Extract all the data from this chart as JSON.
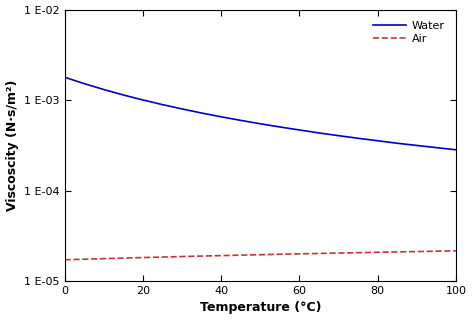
{
  "title": "",
  "xlabel": "Temperature (°C)",
  "ylabel": "Viscoscity (N·s/m²)",
  "xlim": [
    0,
    100
  ],
  "ylim": [
    1e-05,
    0.01
  ],
  "water_color": "#0000cc",
  "air_color": "#cc3333",
  "legend_labels": [
    "Water",
    "Air"
  ],
  "water_viscosity": {
    "T": [
      0,
      5,
      10,
      15,
      20,
      25,
      30,
      35,
      40,
      45,
      50,
      55,
      60,
      65,
      70,
      75,
      80,
      85,
      90,
      95,
      100
    ],
    "mu": [
      0.001787,
      0.001519,
      0.001307,
      0.001138,
      0.001002,
      0.00089,
      0.000798,
      0.000719,
      0.000653,
      0.000596,
      0.000547,
      0.000504,
      0.000467,
      0.000433,
      0.000404,
      0.000378,
      0.000355,
      0.000333,
      0.000315,
      0.000298,
      0.000282
    ]
  },
  "air_viscosity": {
    "T": [
      0,
      10,
      20,
      30,
      40,
      50,
      60,
      70,
      80,
      90,
      100
    ],
    "mu": [
      1.716e-05,
      1.767e-05,
      1.817e-05,
      1.864e-05,
      1.91e-05,
      1.954e-05,
      1.997e-05,
      2.038e-05,
      2.078e-05,
      2.117e-05,
      2.155e-05
    ]
  },
  "yticks": [
    1e-05,
    0.0001,
    0.001,
    0.01
  ],
  "ytick_labels": [
    "1 E-05",
    "1 E-04",
    "1 E-03",
    "1 E-02"
  ],
  "xticks": [
    0,
    20,
    40,
    60,
    80,
    100
  ],
  "xtick_labels": [
    "0",
    "20",
    "40",
    "60",
    "80",
    "100"
  ],
  "background_color": "#ffffff",
  "axis_color": "#000000"
}
